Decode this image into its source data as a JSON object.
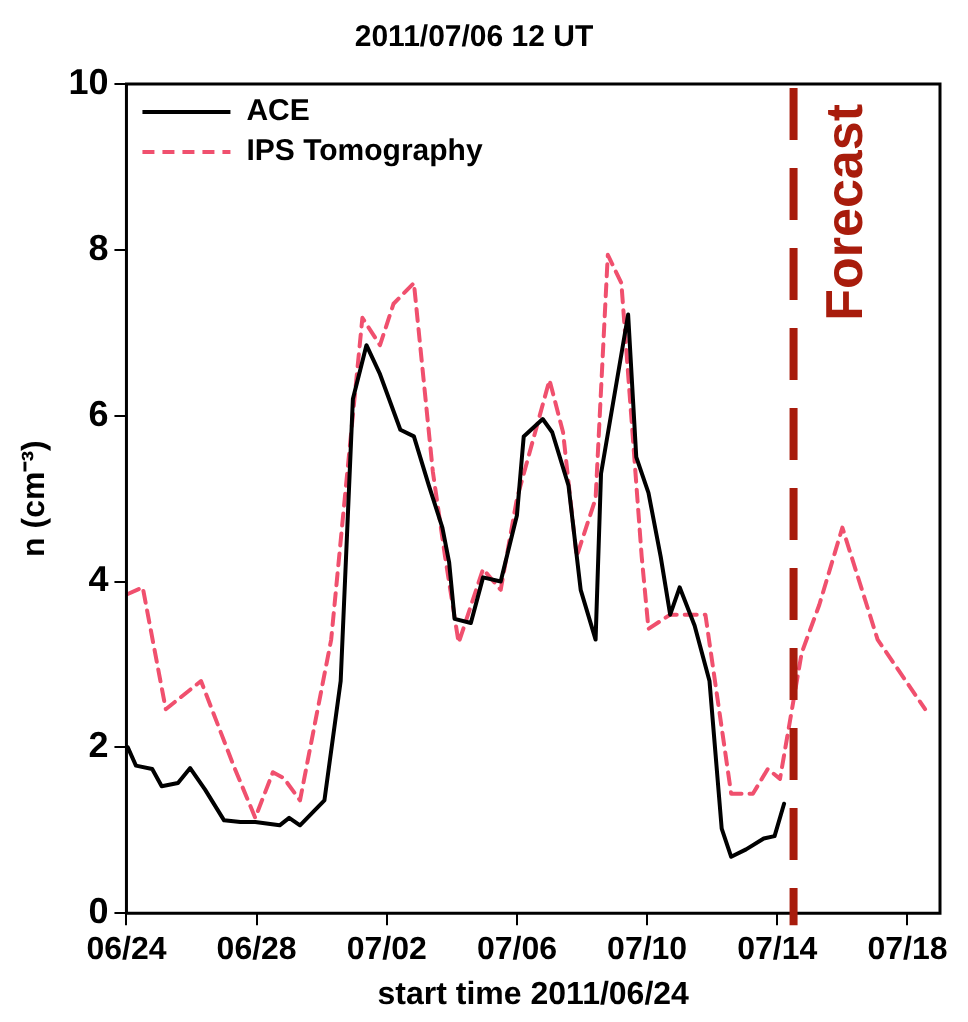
{
  "chart_data": {
    "type": "line",
    "title": "2011/07/06 12 UT",
    "xlabel": "start time 2011/06/24",
    "ylabel": "n (cm⁻³)",
    "xlim": [
      "2011-06-24",
      "2011-07-19"
    ],
    "xticks": [
      {
        "value": "2011-06-24",
        "label": "06/24"
      },
      {
        "value": "2011-06-28",
        "label": "06/28"
      },
      {
        "value": "2011-07-02",
        "label": "07/02"
      },
      {
        "value": "2011-07-06",
        "label": "07/06"
      },
      {
        "value": "2011-07-10",
        "label": "07/10"
      },
      {
        "value": "2011-07-14",
        "label": "07/14"
      },
      {
        "value": "2011-07-18",
        "label": "07/18"
      }
    ],
    "ylim": [
      0,
      10
    ],
    "yticks": [
      0,
      2,
      4,
      6,
      8,
      10
    ],
    "grid": false,
    "legend": "top left",
    "marker": "none",
    "series": [
      {
        "name": "ACE",
        "color": "#000000",
        "line_style": "solid",
        "x": [
          "2011-06-24T01:00",
          "2011-06-24T07:00",
          "2011-06-24T19:00",
          "2011-06-25T02:00",
          "2011-06-25T14:00",
          "2011-06-25T23:00",
          "2011-06-26T10:00",
          "2011-06-27T00:00",
          "2011-06-27T12:00",
          "2011-06-27T23:00",
          "2011-06-28T17:00",
          "2011-06-29T00:00",
          "2011-06-29T08:00",
          "2011-06-30T02:00",
          "2011-06-30T14:00",
          "2011-06-30T23:00",
          "2011-07-01T09:00",
          "2011-07-01T19:00",
          "2011-07-02T10:00",
          "2011-07-02T20:00",
          "2011-07-03T07:00",
          "2011-07-03T17:00",
          "2011-07-03T22:00",
          "2011-07-04T02:00",
          "2011-07-04T14:00",
          "2011-07-04T23:00",
          "2011-07-05T12:00",
          "2011-07-06T00:00",
          "2011-07-06T05:00",
          "2011-07-06T19:00",
          "2011-07-07T02:00",
          "2011-07-07T14:00",
          "2011-07-07T23:00",
          "2011-07-08T10:00",
          "2011-07-08T14:00",
          "2011-07-09T10:00",
          "2011-07-09T16:00",
          "2011-07-10T01:00",
          "2011-07-10T10:00",
          "2011-07-10T17:00",
          "2011-07-11T00:00",
          "2011-07-11T11:00",
          "2011-07-11T22:00",
          "2011-07-12T07:00",
          "2011-07-12T14:00",
          "2011-07-13T01:00",
          "2011-07-13T14:00",
          "2011-07-13T22:00",
          "2011-07-14T05:00"
        ],
        "values": [
          2.0,
          1.78,
          1.74,
          1.53,
          1.57,
          1.75,
          1.49,
          1.12,
          1.1,
          1.1,
          1.06,
          1.15,
          1.06,
          1.36,
          2.8,
          6.2,
          6.85,
          6.5,
          5.83,
          5.75,
          5.16,
          4.65,
          4.23,
          3.55,
          3.5,
          4.05,
          4.0,
          4.8,
          5.75,
          5.96,
          5.8,
          5.16,
          3.9,
          3.3,
          5.3,
          7.22,
          5.5,
          5.07,
          4.3,
          3.6,
          3.93,
          3.47,
          2.8,
          1.02,
          0.68,
          0.77,
          0.9,
          0.93,
          1.32
        ]
      },
      {
        "name": "IPS Tomography",
        "color": "#f0506e",
        "line_style": "dashed",
        "x": [
          "2011-06-24T01:00",
          "2011-06-24T12:00",
          "2011-06-25T05:00",
          "2011-06-26T07:00",
          "2011-06-27T07:00",
          "2011-06-27T23:00",
          "2011-06-28T12:00",
          "2011-06-28T20:00",
          "2011-06-29T08:00",
          "2011-06-30T07:00",
          "2011-06-30T17:00",
          "2011-07-01T06:00",
          "2011-07-01T19:00",
          "2011-07-02T05:00",
          "2011-07-02T20:00",
          "2011-07-03T10:00",
          "2011-07-03T19:00",
          "2011-07-04T05:00",
          "2011-07-04T23:00",
          "2011-07-05T12:00",
          "2011-07-06T00:00",
          "2011-07-07T00:00",
          "2011-07-07T10:00",
          "2011-07-07T20:00",
          "2011-07-08T10:00",
          "2011-07-08T19:00",
          "2011-07-09T05:00",
          "2011-07-09T20:00",
          "2011-07-10T01:00",
          "2011-07-10T17:00",
          "2011-07-11T19:00",
          "2011-07-12T14:00",
          "2011-07-13T06:00",
          "2011-07-13T17:00",
          "2011-07-14T02:00",
          "2011-07-14T18:00",
          "2011-07-15T07:00",
          "2011-07-16T00:00",
          "2011-07-17T02:00",
          "2011-07-18T13:00"
        ],
        "values": [
          3.85,
          3.93,
          2.46,
          2.8,
          1.78,
          1.15,
          1.7,
          1.63,
          1.36,
          3.3,
          5.0,
          7.18,
          6.85,
          7.35,
          7.6,
          5.32,
          4.3,
          3.26,
          4.15,
          3.9,
          5.0,
          6.43,
          5.8,
          4.3,
          5.0,
          7.94,
          7.6,
          4.3,
          3.43,
          3.6,
          3.6,
          1.44,
          1.44,
          1.74,
          1.62,
          3.14,
          3.72,
          4.65,
          3.3,
          2.46
        ]
      }
    ],
    "ref_lines": [
      {
        "axis": "x",
        "value": "2011-07-14T12:00",
        "label": "Forecast",
        "color": "#a81c0c",
        "line_style": "dashed"
      }
    ]
  }
}
